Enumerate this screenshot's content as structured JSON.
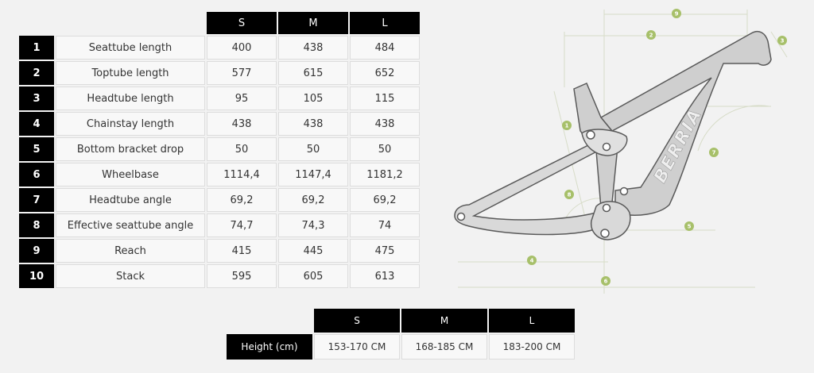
{
  "geometry": {
    "sizes": [
      "S",
      "M",
      "L"
    ],
    "rows": [
      {
        "num": "1",
        "label": "Seattube length",
        "values": [
          "400",
          "438",
          "484"
        ]
      },
      {
        "num": "2",
        "label": "Toptube length",
        "values": [
          "577",
          "615",
          "652"
        ]
      },
      {
        "num": "3",
        "label": "Headtube length",
        "values": [
          "95",
          "105",
          "115"
        ]
      },
      {
        "num": "4",
        "label": "Chainstay length",
        "values": [
          "438",
          "438",
          "438"
        ]
      },
      {
        "num": "5",
        "label": "Bottom bracket drop",
        "values": [
          "50",
          "50",
          "50"
        ]
      },
      {
        "num": "6",
        "label": "Wheelbase",
        "values": [
          "1114,4",
          "1147,4",
          "1181,2"
        ]
      },
      {
        "num": "7",
        "label": "Headtube angle",
        "values": [
          "69,2",
          "69,2",
          "69,2"
        ]
      },
      {
        "num": "8",
        "label": "Effective seattube angle",
        "values": [
          "74,7",
          "74,3",
          "74"
        ]
      },
      {
        "num": "9",
        "label": "Reach",
        "values": [
          "415",
          "445",
          "475"
        ]
      },
      {
        "num": "10",
        "label": "Stack",
        "values": [
          "595",
          "605",
          "613"
        ]
      }
    ]
  },
  "rider_height": {
    "sizes": [
      "S",
      "M",
      "L"
    ],
    "label": "Height (cm)",
    "values": [
      "153-170 CM",
      "168-185 CM",
      "183-200 CM"
    ]
  },
  "diagram": {
    "frame_logo": "BERRIA",
    "markers": [
      "1",
      "2",
      "3",
      "4",
      "5",
      "6",
      "7",
      "8",
      "9"
    ],
    "colors": {
      "frame": "#cfcfcf",
      "outline": "#5a5a5a",
      "marker": "#a7c06a",
      "guide": "#d7dcc8"
    }
  }
}
